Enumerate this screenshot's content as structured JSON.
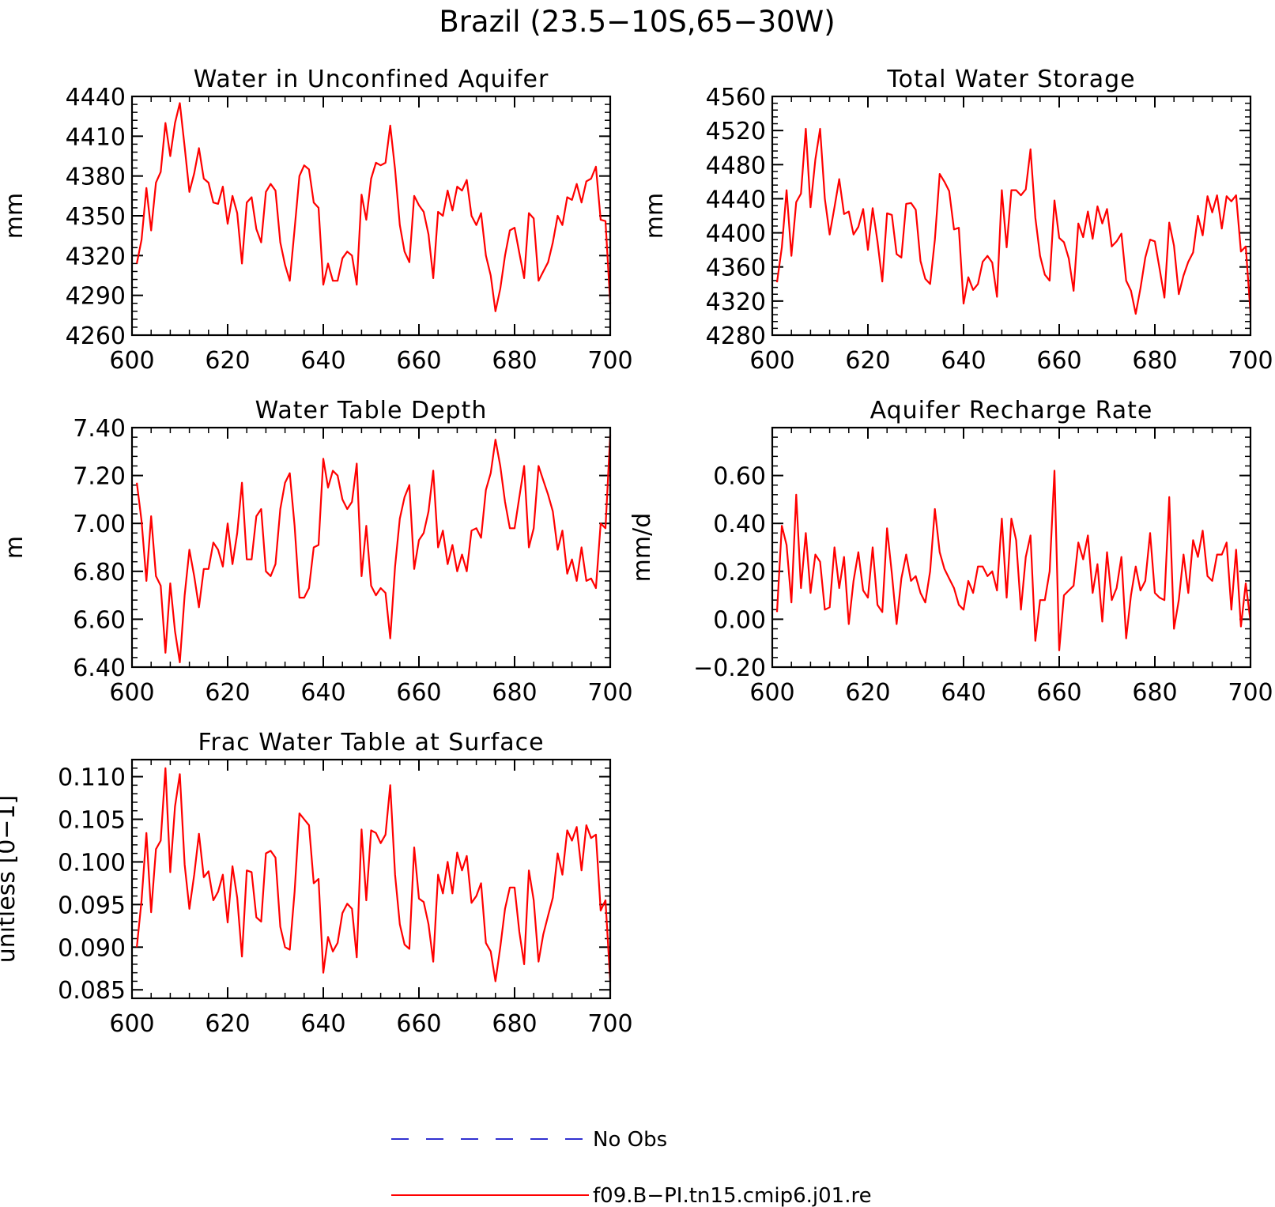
{
  "figure": {
    "title": "Brazil (23.5−10S,65−30W)",
    "legend": [
      {
        "label": "No Obs",
        "color": "#3030d0",
        "style": "dashed"
      },
      {
        "label": "f09.B−PI.tn15.cmip6.j01.re",
        "color": "#ff0000",
        "style": "solid"
      }
    ]
  },
  "chart_data": [
    {
      "type": "line",
      "title": "Water in Unconfined Aquifer",
      "xlabel": "",
      "ylabel": "mm",
      "xlim": [
        600,
        700
      ],
      "ylim": [
        4260,
        4440
      ],
      "xticks": [
        600,
        620,
        640,
        660,
        680,
        700
      ],
      "yticks": [
        4260,
        4290,
        4320,
        4350,
        4380,
        4410,
        4440
      ],
      "ytick_labels": [
        "4260",
        "4290",
        "4320",
        "4350",
        "4380",
        "4410",
        "4440"
      ],
      "x_start": 601,
      "series": [
        {
          "color": "#ff0000",
          "values": [
            4314,
            4332,
            4371,
            4339,
            4375,
            4383,
            4420,
            4395,
            4420,
            4435,
            4402,
            4368,
            4382,
            4401,
            4378,
            4375,
            4360,
            4359,
            4372,
            4344,
            4365,
            4352,
            4314,
            4360,
            4364,
            4340,
            4330,
            4368,
            4374,
            4369,
            4330,
            4313,
            4301,
            4340,
            4380,
            4388,
            4385,
            4360,
            4356,
            4298,
            4314,
            4301,
            4301,
            4318,
            4323,
            4320,
            4298,
            4366,
            4347,
            4378,
            4390,
            4388,
            4390,
            4418,
            4385,
            4343,
            4323,
            4315,
            4365,
            4358,
            4353,
            4336,
            4303,
            4353,
            4350,
            4369,
            4354,
            4372,
            4369,
            4377,
            4350,
            4343,
            4352,
            4320,
            4305,
            4278,
            4295,
            4320,
            4339,
            4341,
            4322,
            4303,
            4352,
            4348,
            4301,
            4308,
            4315,
            4330,
            4350,
            4343,
            4364,
            4362,
            4374,
            4360,
            4376,
            4378,
            4387,
            4347,
            4346,
            4284
          ]
        }
      ]
    },
    {
      "type": "line",
      "title": "Total Water Storage",
      "xlabel": "",
      "ylabel": "mm",
      "xlim": [
        600,
        700
      ],
      "ylim": [
        4280,
        4560
      ],
      "xticks": [
        600,
        620,
        640,
        660,
        680,
        700
      ],
      "yticks": [
        4280,
        4320,
        4360,
        4400,
        4440,
        4480,
        4520,
        4560
      ],
      "ytick_labels": [
        "4280",
        "4320",
        "4360",
        "4400",
        "4440",
        "4480",
        "4520",
        "4560"
      ],
      "x_start": 601,
      "series": [
        {
          "color": "#ff0000",
          "values": [
            4342,
            4383,
            4450,
            4373,
            4436,
            4446,
            4522,
            4430,
            4486,
            4522,
            4440,
            4398,
            4430,
            4463,
            4422,
            4425,
            4398,
            4407,
            4428,
            4380,
            4429,
            4390,
            4343,
            4423,
            4421,
            4375,
            4371,
            4434,
            4435,
            4427,
            4367,
            4346,
            4340,
            4392,
            4469,
            4460,
            4449,
            4404,
            4406,
            4317,
            4348,
            4333,
            4340,
            4366,
            4373,
            4365,
            4325,
            4450,
            4383,
            4450,
            4450,
            4444,
            4451,
            4498,
            4418,
            4373,
            4351,
            4344,
            4438,
            4394,
            4389,
            4370,
            4332,
            4411,
            4395,
            4425,
            4393,
            4431,
            4411,
            4428,
            4384,
            4390,
            4399,
            4344,
            4332,
            4305,
            4335,
            4371,
            4392,
            4390,
            4358,
            4324,
            4412,
            4385,
            4328,
            4350,
            4366,
            4377,
            4420,
            4397,
            4443,
            4424,
            4444,
            4405,
            4443,
            4437,
            4444,
            4378,
            4384,
            4306
          ]
        }
      ]
    },
    {
      "type": "line",
      "title": "Water Table Depth",
      "xlabel": "",
      "ylabel": "m",
      "xlim": [
        600,
        700
      ],
      "ylim": [
        6.4,
        7.4
      ],
      "xticks": [
        600,
        620,
        640,
        660,
        680,
        700
      ],
      "yticks": [
        6.4,
        6.6,
        6.8,
        7.0,
        7.2,
        7.4
      ],
      "ytick_labels": [
        "6.40",
        "6.60",
        "6.80",
        "7.00",
        "7.20",
        "7.40"
      ],
      "x_start": 601,
      "series": [
        {
          "color": "#ff0000",
          "values": [
            7.17,
            7.01,
            6.76,
            7.03,
            6.78,
            6.74,
            6.46,
            6.75,
            6.55,
            6.42,
            6.7,
            6.89,
            6.78,
            6.65,
            6.81,
            6.81,
            6.92,
            6.89,
            6.82,
            7.0,
            6.83,
            6.96,
            7.17,
            6.85,
            6.85,
            7.03,
            7.06,
            6.8,
            6.78,
            6.83,
            7.06,
            7.17,
            7.21,
            6.99,
            6.69,
            6.69,
            6.73,
            6.9,
            6.91,
            7.27,
            7.15,
            7.22,
            7.2,
            7.1,
            7.06,
            7.09,
            7.25,
            6.78,
            6.99,
            6.74,
            6.7,
            6.73,
            6.71,
            6.52,
            6.82,
            7.02,
            7.11,
            7.16,
            6.81,
            6.93,
            6.96,
            7.05,
            7.22,
            6.9,
            6.97,
            6.83,
            6.91,
            6.8,
            6.87,
            6.8,
            6.97,
            6.98,
            6.94,
            7.14,
            7.21,
            7.35,
            7.24,
            7.09,
            6.98,
            6.98,
            7.11,
            7.24,
            6.9,
            6.98,
            7.24,
            7.18,
            7.12,
            7.05,
            6.89,
            6.97,
            6.79,
            6.85,
            6.76,
            6.9,
            6.76,
            6.77,
            6.73,
            7.0,
            6.98,
            7.37
          ]
        }
      ]
    },
    {
      "type": "line",
      "title": "Aquifer Recharge Rate",
      "xlabel": "",
      "ylabel": "mm/d",
      "xlim": [
        600,
        700
      ],
      "ylim": [
        -0.2,
        0.8
      ],
      "xticks": [
        600,
        620,
        640,
        660,
        680,
        700
      ],
      "yticks": [
        -0.2,
        0.0,
        0.2,
        0.4,
        0.6
      ],
      "ytick_labels": [
        "−0.20",
        "0.00",
        "0.20",
        "0.40",
        "0.60"
      ],
      "x_start": 601,
      "series": [
        {
          "color": "#ff0000",
          "values": [
            0.03,
            0.39,
            0.31,
            0.07,
            0.52,
            0.13,
            0.36,
            0.11,
            0.27,
            0.24,
            0.04,
            0.05,
            0.3,
            0.13,
            0.26,
            -0.02,
            0.16,
            0.28,
            0.12,
            0.09,
            0.3,
            0.06,
            0.03,
            0.38,
            0.19,
            -0.02,
            0.17,
            0.27,
            0.16,
            0.18,
            0.11,
            0.07,
            0.2,
            0.46,
            0.28,
            0.21,
            0.17,
            0.13,
            0.06,
            0.04,
            0.16,
            0.11,
            0.22,
            0.22,
            0.18,
            0.2,
            0.12,
            0.42,
            0.09,
            0.42,
            0.33,
            0.04,
            0.26,
            0.35,
            -0.09,
            0.08,
            0.08,
            0.2,
            0.62,
            -0.13,
            0.1,
            0.12,
            0.14,
            0.32,
            0.25,
            0.35,
            0.11,
            0.23,
            -0.01,
            0.28,
            0.08,
            0.13,
            0.26,
            -0.08,
            0.1,
            0.22,
            0.12,
            0.16,
            0.36,
            0.11,
            0.09,
            0.08,
            0.51,
            -0.04,
            0.08,
            0.27,
            0.11,
            0.33,
            0.26,
            0.37,
            0.18,
            0.16,
            0.27,
            0.27,
            0.32,
            0.04,
            0.29,
            -0.03,
            0.15,
            -0.01
          ]
        }
      ]
    },
    {
      "type": "line",
      "title": "Frac Water Table at Surface",
      "xlabel": "",
      "ylabel": "unitless [0−1]",
      "xlim": [
        600,
        700
      ],
      "ylim": [
        0.084,
        0.112
      ],
      "xticks": [
        600,
        620,
        640,
        660,
        680,
        700
      ],
      "yticks": [
        0.085,
        0.09,
        0.095,
        0.1,
        0.105,
        0.11
      ],
      "ytick_labels": [
        "0.085",
        "0.090",
        "0.095",
        "0.100",
        "0.105",
        "0.110"
      ],
      "x_start": 601,
      "series": [
        {
          "color": "#ff0000",
          "values": [
            0.09,
            0.0955,
            0.1034,
            0.0941,
            0.1015,
            0.1025,
            0.111,
            0.0988,
            0.1065,
            0.1103,
            0.0997,
            0.0945,
            0.0985,
            0.1033,
            0.0982,
            0.0989,
            0.0955,
            0.0965,
            0.0985,
            0.0929,
            0.0995,
            0.0958,
            0.0889,
            0.099,
            0.0988,
            0.0935,
            0.093,
            0.101,
            0.1013,
            0.1005,
            0.0924,
            0.09,
            0.0897,
            0.0965,
            0.1057,
            0.105,
            0.1043,
            0.0975,
            0.098,
            0.087,
            0.0912,
            0.0895,
            0.0905,
            0.094,
            0.0951,
            0.0945,
            0.0888,
            0.1038,
            0.0955,
            0.1037,
            0.1034,
            0.1022,
            0.1032,
            0.109,
            0.0985,
            0.0927,
            0.0903,
            0.0898,
            0.1017,
            0.0957,
            0.0953,
            0.0927,
            0.0883,
            0.0985,
            0.0963,
            0.1,
            0.0963,
            0.1011,
            0.099,
            0.1007,
            0.0952,
            0.096,
            0.0975,
            0.0905,
            0.0895,
            0.086,
            0.09,
            0.0945,
            0.097,
            0.097,
            0.0918,
            0.088,
            0.099,
            0.0955,
            0.0883,
            0.0915,
            0.0937,
            0.0958,
            0.101,
            0.0985,
            0.1037,
            0.1025,
            0.1041,
            0.099,
            0.1043,
            0.1028,
            0.1032,
            0.0943,
            0.0955,
            0.086
          ]
        }
      ]
    }
  ]
}
